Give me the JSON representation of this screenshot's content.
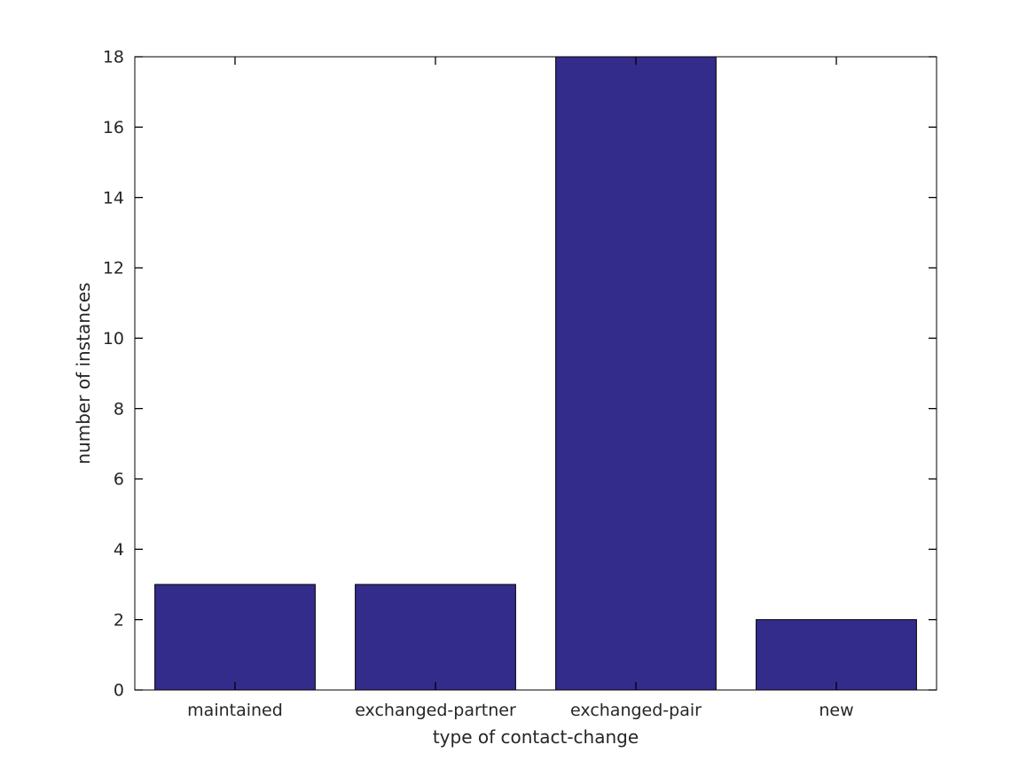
{
  "chart_data": {
    "type": "bar",
    "title": "",
    "categories": [
      "maintained",
      "exchanged-partner",
      "exchanged-pair",
      "new"
    ],
    "values": [
      3,
      3,
      18,
      2
    ],
    "xlabel": "type of contact-change",
    "ylabel": "number of instances",
    "ylim": [
      0,
      18
    ],
    "y_ticks": [
      0,
      2,
      4,
      6,
      8,
      10,
      12,
      14,
      16,
      18
    ],
    "grid": false,
    "legend": null,
    "bar_fill_color": "#342C8A",
    "bar_edge_color": "#000000",
    "axis_color": "#000000",
    "text_color": "#262626",
    "background_color": "#ffffff",
    "bar_width_fraction": 0.8,
    "tick_direction": "in"
  }
}
